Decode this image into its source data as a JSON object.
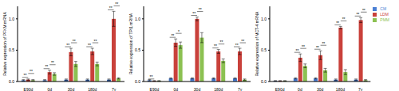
{
  "chart_data": [
    {
      "type": "bar",
      "y_label": "Relative expression of PFKM mRNA",
      "categories": [
        "E90d",
        "0d",
        "30d",
        "180d",
        "7y"
      ],
      "series": [
        {
          "name": "CM",
          "color": "#4a7fd4",
          "values": [
            0.02,
            0.02,
            0.03,
            0.03,
            0.03
          ],
          "errors": [
            0.01,
            0.01,
            0.01,
            0.01,
            0.01
          ]
        },
        {
          "name": "LDM",
          "color": "#c9413b",
          "values": [
            0.03,
            0.15,
            0.47,
            0.48,
            1.0
          ],
          "errors": [
            0.01,
            0.03,
            0.06,
            0.05,
            0.12
          ]
        },
        {
          "name": "PMM",
          "color": "#8cc152",
          "values": [
            0.02,
            0.12,
            0.28,
            0.28,
            0.05
          ],
          "errors": [
            0.01,
            0.02,
            0.04,
            0.03,
            0.01
          ]
        }
      ],
      "ylim": [
        0,
        1.2
      ],
      "yticks": [
        {
          "value": 0,
          "label": "0.0"
        },
        0.5,
        {
          "value": 1,
          "label": "1.0"
        }
      ],
      "significance": [
        [
          "**",
          "**"
        ],
        [
          "**",
          "**"
        ],
        [
          "**",
          "**"
        ],
        [
          "**",
          "**"
        ],
        [
          "**",
          "**"
        ]
      ]
    },
    {
      "type": "bar",
      "y_label": "Relative expression of TPI1 mRNA",
      "categories": [
        "E90d",
        "0d",
        "30d",
        "180d",
        "7y"
      ],
      "series": [
        {
          "name": "CM",
          "color": "#4a7fd4",
          "values": [
            0.02,
            0.05,
            0.05,
            0.05,
            0.05
          ],
          "errors": [
            0.01,
            0.01,
            0.01,
            0.01,
            0.01
          ]
        },
        {
          "name": "LDM",
          "color": "#c9413b",
          "values": [
            0.01,
            0.62,
            1.0,
            0.48,
            0.48
          ],
          "errors": [
            0.005,
            0.06,
            0.03,
            0.03,
            0.05
          ]
        },
        {
          "name": "PMM",
          "color": "#8cc152",
          "values": [
            0.01,
            0.58,
            0.7,
            0.33,
            0.03
          ],
          "errors": [
            0.005,
            0.05,
            0.08,
            0.03,
            0.01
          ]
        }
      ],
      "ylim": [
        0,
        1.2
      ],
      "yticks": [
        {
          "value": 0,
          "label": "0.0"
        },
        0.5,
        {
          "value": 1,
          "label": "1.0"
        }
      ],
      "significance": [
        [
          "**",
          null
        ],
        [
          "**",
          "*"
        ],
        [
          "**",
          "**"
        ],
        [
          "**",
          "**"
        ],
        [
          "**",
          "**"
        ]
      ]
    },
    {
      "type": "bar",
      "y_label": "Relative expression of MCT-4 mRNA",
      "legend": "top-right",
      "categories": [
        "E90d",
        "0d",
        "30d",
        "180d",
        "7y"
      ],
      "series": [
        {
          "name": "CM",
          "color": "#4a7fd4",
          "values": [
            0.01,
            0.05,
            0.05,
            0.03,
            0.03
          ],
          "errors": [
            0.005,
            0.01,
            0.01,
            0.01,
            0.01
          ]
        },
        {
          "name": "LDM",
          "color": "#c9413b",
          "values": [
            0.01,
            0.38,
            0.42,
            0.86,
            0.98
          ],
          "errors": [
            0.005,
            0.06,
            0.07,
            0.02,
            0.04
          ]
        },
        {
          "name": "PMM",
          "color": "#8cc152",
          "values": [
            0.01,
            0.25,
            0.18,
            0.15,
            0.02
          ],
          "errors": [
            0.005,
            0.03,
            0.03,
            0.04,
            0.01
          ]
        }
      ],
      "ylim": [
        0,
        1.2
      ],
      "yticks": [
        {
          "value": 0,
          "label": "0.0"
        },
        0.5,
        {
          "value": 1,
          "label": "1.0"
        }
      ],
      "significance": [
        [
          null,
          null
        ],
        [
          "**",
          "**"
        ],
        [
          "**",
          "**"
        ],
        [
          "**",
          "**"
        ],
        [
          "**",
          "**"
        ]
      ]
    }
  ]
}
